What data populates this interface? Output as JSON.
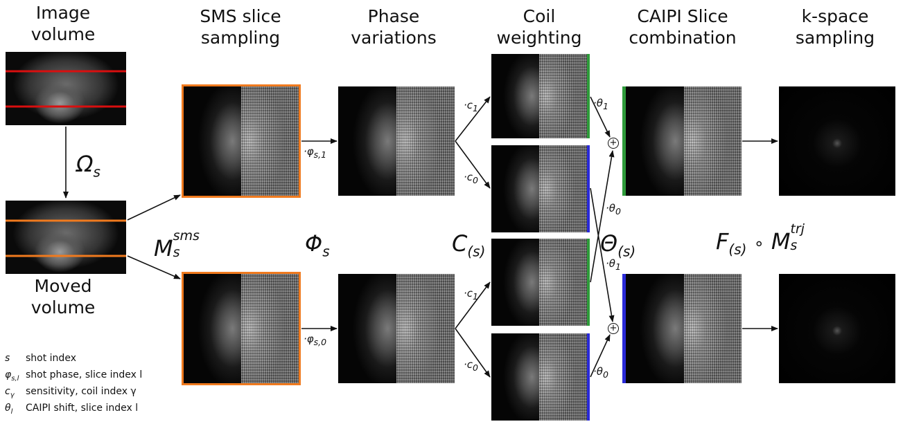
{
  "headers": {
    "image_volume": "Image\nvolume",
    "sms_slice_sampling": "SMS slice\nsampling",
    "phase_variations": "Phase\nvariations",
    "coil_weighting": "Coil\nweighting",
    "caipi_slice_combination": "CAIPI Slice\ncombination",
    "kspace_sampling": "k-space\nsampling"
  },
  "labels": {
    "moved_volume": "Moved\nvolume",
    "omega": "Ω",
    "omega_sub": "s",
    "m_sms_base": "M",
    "m_sms_sub": "s",
    "m_sms_sup": "sms",
    "phi": "Φ",
    "phi_sub": "s",
    "c_base": "C",
    "c_sub": "(s)",
    "theta_base": "Θ",
    "theta_sub": "(s)",
    "f_base": "F",
    "f_sub": "(s)",
    "compose": "∘",
    "m_trj_base": "M",
    "m_trj_sub": "s",
    "m_trj_sup": "trj",
    "phi_s1": "·φ",
    "phi_s1_sub": "s,1",
    "phi_s0": "·φ",
    "phi_s0_sub": "s,0",
    "c1_top": "·c",
    "c1_top_sub": "1",
    "c0_top": "·c",
    "c0_top_sub": "0",
    "c1_bot": "·c",
    "c1_bot_sub": "1",
    "c0_bot": "·c",
    "c0_bot_sub": "0",
    "theta1_top": "·θ",
    "theta1_top_sub": "1",
    "theta0_mid": "·θ",
    "theta0_mid_sub": "0",
    "theta1_mid": "·θ",
    "theta1_mid_sub": "1",
    "theta0_bot": "·θ",
    "theta0_bot_sub": "0",
    "plus": "+"
  },
  "legend": [
    {
      "sym": "s",
      "sub": "",
      "text": "shot index"
    },
    {
      "sym": "φ",
      "sub": "s,l",
      "text": "shot phase, slice index l"
    },
    {
      "sym": "c",
      "sub": "γ",
      "text": "sensitivity, coil index γ"
    },
    {
      "sym": "θ",
      "sub": "l",
      "text": "CAIPI shift, slice index l"
    }
  ],
  "colors": {
    "slice_red": "#d80f0f",
    "slice_orange": "#f07a1e",
    "coil_green": "#2e9b3a",
    "coil_blue": "#2a2ad8"
  }
}
